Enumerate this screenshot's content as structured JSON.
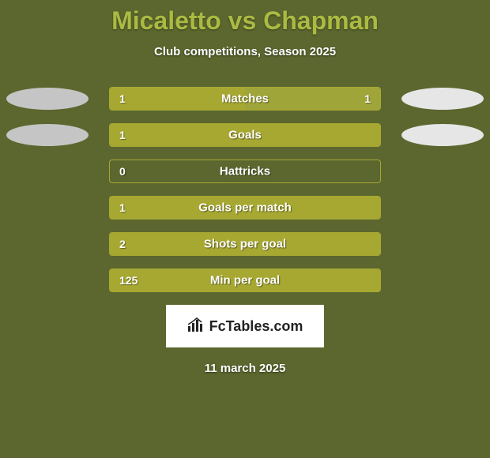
{
  "title": "Micaletto vs Chapman",
  "subtitle": "Club competitions, Season 2025",
  "date": "11 march 2025",
  "logo_text": "FcTables.com",
  "colors": {
    "background": "#5b672e",
    "title": "#abba42",
    "text": "#ffffff",
    "ellipse_left": "#c5c5c5",
    "ellipse_right": "#e6e6e6",
    "bar_fill": "#a7a832",
    "bar_fill_alt": "#a0a53a",
    "bar_border": "#a7a832"
  },
  "rows": [
    {
      "label": "Matches",
      "left_value": "1",
      "right_value": "1",
      "left_pct": 50,
      "right_pct": 50,
      "show_ellipses": true,
      "show_right_value": true
    },
    {
      "label": "Goals",
      "left_value": "1",
      "right_value": "",
      "left_pct": 100,
      "right_pct": 0,
      "show_ellipses": true,
      "show_right_value": false
    },
    {
      "label": "Hattricks",
      "left_value": "0",
      "right_value": "",
      "left_pct": 0,
      "right_pct": 0,
      "show_ellipses": false,
      "show_right_value": false
    },
    {
      "label": "Goals per match",
      "left_value": "1",
      "right_value": "",
      "left_pct": 100,
      "right_pct": 0,
      "show_ellipses": false,
      "show_right_value": false
    },
    {
      "label": "Shots per goal",
      "left_value": "2",
      "right_value": "",
      "left_pct": 100,
      "right_pct": 0,
      "show_ellipses": false,
      "show_right_value": false
    },
    {
      "label": "Min per goal",
      "left_value": "125",
      "right_value": "",
      "left_pct": 100,
      "right_pct": 0,
      "show_ellipses": false,
      "show_right_value": false
    }
  ]
}
